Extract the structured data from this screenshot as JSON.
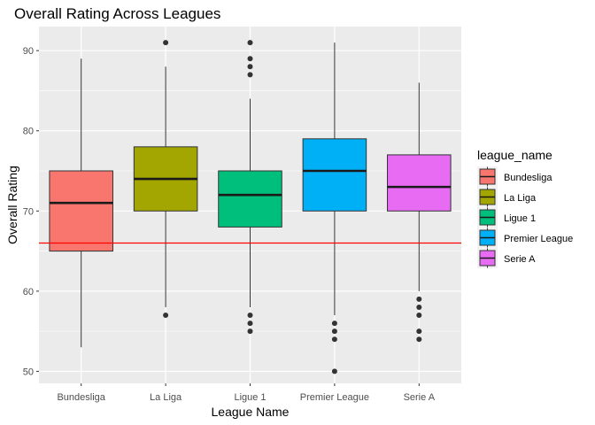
{
  "chart_data": {
    "type": "box",
    "title": "Overall Rating Across Leagues",
    "xlabel": "League Name",
    "ylabel": "Overall Rating",
    "ylim": [
      48.5,
      93
    ],
    "yticks": [
      50,
      60,
      70,
      80,
      90
    ],
    "categories": [
      "Bundesliga",
      "La Liga",
      "Ligue 1",
      "Premier League",
      "Serie A"
    ],
    "boxes": [
      {
        "category": "Bundesliga",
        "min": 53,
        "q1": 65,
        "median": 71,
        "q3": 75,
        "max": 89,
        "outliers": [],
        "color": "#F8766D"
      },
      {
        "category": "La Liga",
        "min": 58,
        "q1": 70,
        "median": 74,
        "q3": 78,
        "max": 88,
        "outliers": [
          57,
          91
        ],
        "color": "#A3A500"
      },
      {
        "category": "Ligue 1",
        "min": 58,
        "q1": 68,
        "median": 72,
        "q3": 75,
        "max": 84,
        "outliers": [
          55,
          56,
          57,
          87,
          88,
          89,
          91
        ],
        "color": "#00BF7D"
      },
      {
        "category": "Premier League",
        "min": 57,
        "q1": 70,
        "median": 75,
        "q3": 79,
        "max": 91,
        "outliers": [
          50,
          54,
          55,
          56
        ],
        "color": "#00B0F6"
      },
      {
        "category": "Serie A",
        "min": 60,
        "q1": 70,
        "median": 73,
        "q3": 77,
        "max": 86,
        "outliers": [
          54,
          55,
          57,
          58,
          59
        ],
        "color": "#E76BF3"
      }
    ],
    "reference_line": {
      "y": 66,
      "color": "#FF0000"
    },
    "legend": {
      "title": "league_name",
      "position": "right",
      "entries": [
        "Bundesliga",
        "La Liga",
        "Ligue 1",
        "Premier League",
        "Serie A"
      ]
    },
    "grid": true,
    "panel_background": "#EBEBEB"
  }
}
